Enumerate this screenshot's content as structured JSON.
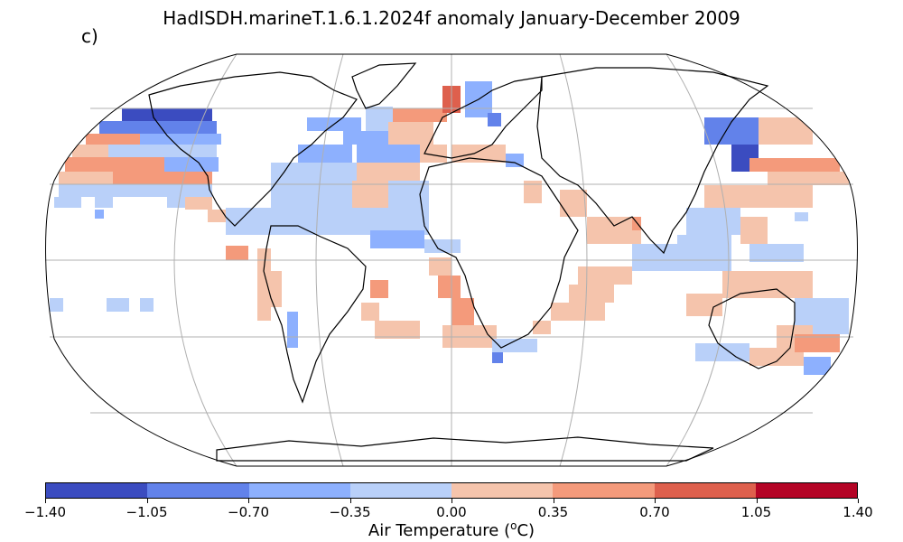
{
  "title": "HadISDH.marineT.1.6.1.2024f anomaly January-December 2009",
  "panel_label": "c)",
  "map": {
    "projection": "Robinson",
    "gridlines": true,
    "ocean_color": "#ffffff",
    "coast_color": "#000000"
  },
  "colorbar": {
    "label_prefix": "Air Temperature (",
    "label_sup": "o",
    "label_suffix": "C)",
    "ticks": [
      "−1.40",
      "−1.05",
      "−0.70",
      "−0.35",
      "0.00",
      "0.35",
      "0.70",
      "1.05",
      "1.40"
    ],
    "colors": [
      "#3b4cc0",
      "#6282ea",
      "#8db0fe",
      "#b9d0f9",
      "#f5c4ac",
      "#f49a7b",
      "#de604d",
      "#b40426"
    ]
  }
}
